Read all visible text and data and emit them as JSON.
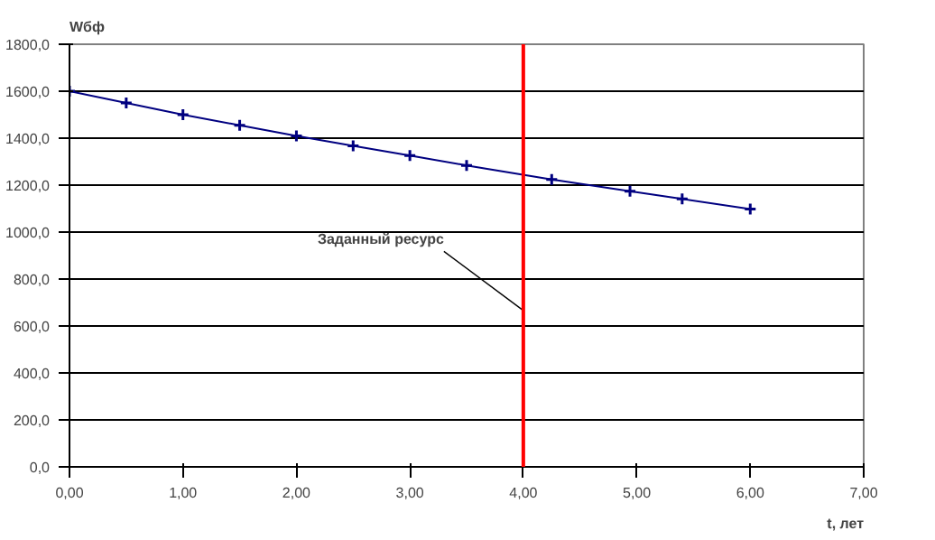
{
  "chart_data": {
    "type": "line",
    "ylabel": "Wбф",
    "xlabel": "t, лет",
    "x": [
      0,
      0.5,
      1.0,
      1.5,
      2.0,
      2.5,
      3.0,
      3.5,
      4.25,
      4.94,
      5.4,
      6.0
    ],
    "series": [
      {
        "color": "#000080",
        "values": [
          1600,
          1550,
          1500,
          1455,
          1410,
          1367,
          1326,
          1284,
          1224,
          1174,
          1141,
          1098
        ]
      }
    ],
    "xlim": [
      0,
      7
    ],
    "xticks": [
      {
        "value": 0,
        "label": "0,00"
      },
      {
        "value": 1,
        "label": "1,00"
      },
      {
        "value": 2,
        "label": "2,00"
      },
      {
        "value": 3,
        "label": "3,00"
      },
      {
        "value": 4,
        "label": "4,00"
      },
      {
        "value": 5,
        "label": "5,00"
      },
      {
        "value": 6,
        "label": "6,00"
      },
      {
        "value": 7,
        "label": "7,00"
      }
    ],
    "ylim": [
      0,
      1800
    ],
    "yticks": [
      {
        "value": 0,
        "label": "0,0"
      },
      {
        "value": 200,
        "label": "200,0"
      },
      {
        "value": 400,
        "label": "400,0"
      },
      {
        "value": 600,
        "label": "600,0"
      },
      {
        "value": 800,
        "label": "800,0"
      },
      {
        "value": 1000,
        "label": "1000,0"
      },
      {
        "value": 1200,
        "label": "1200,0"
      },
      {
        "value": 1400,
        "label": "1400,0"
      },
      {
        "value": 1600,
        "label": "1600,0"
      },
      {
        "value": 1800,
        "label": "1800,0"
      }
    ],
    "ref_lines": [
      {
        "axis": "x",
        "value": 4,
        "label": "Заданный ресурс",
        "color": "#ff0000"
      }
    ],
    "grid": "y",
    "marker": "cross",
    "line_style": "solid"
  }
}
